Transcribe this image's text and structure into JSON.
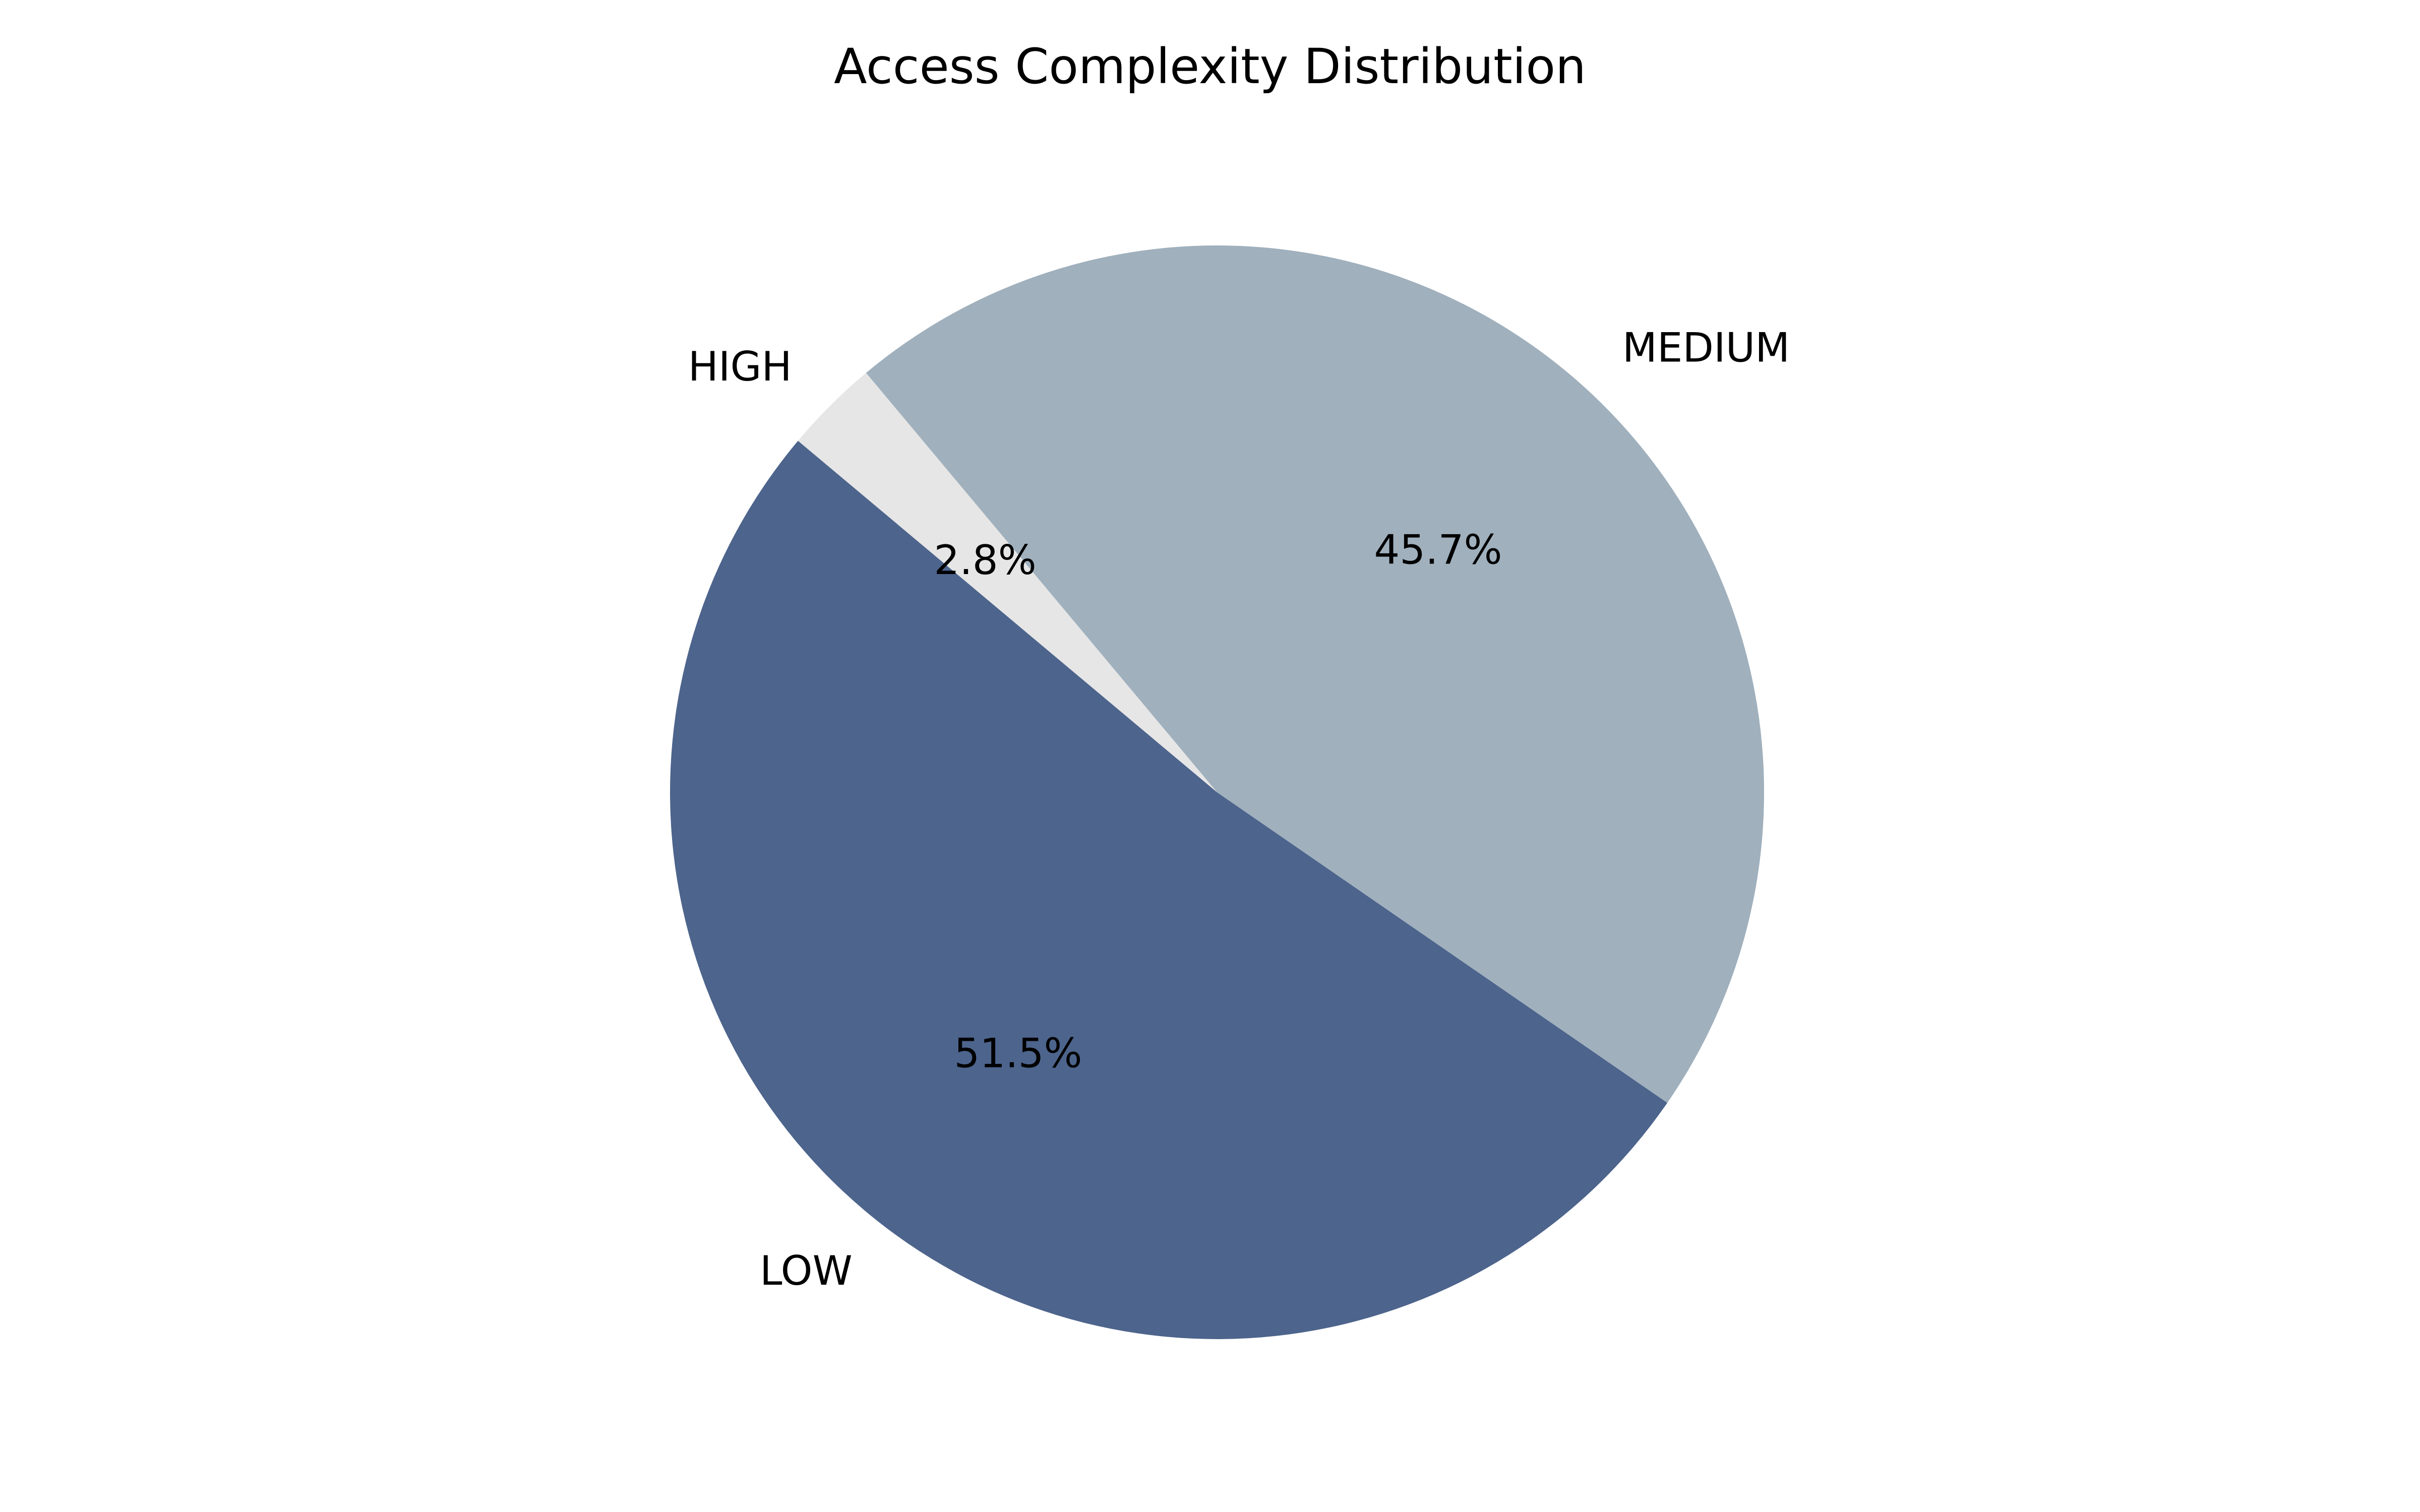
{
  "chart_data": {
    "type": "pie",
    "title": "Access Complexity Distribution",
    "start_angle_deg": 140,
    "direction": "counterclockwise",
    "slices": [
      {
        "label": "LOW",
        "value": 51.5,
        "pct_label": "51.5%",
        "color": "#4d648c"
      },
      {
        "label": "MEDIUM",
        "value": 45.7,
        "pct_label": "45.7%",
        "color": "#a0b0bd"
      },
      {
        "label": "HIGH",
        "value": 2.8,
        "pct_label": "2.8%",
        "color": "#e6e6e6"
      }
    ],
    "legend": "none"
  }
}
